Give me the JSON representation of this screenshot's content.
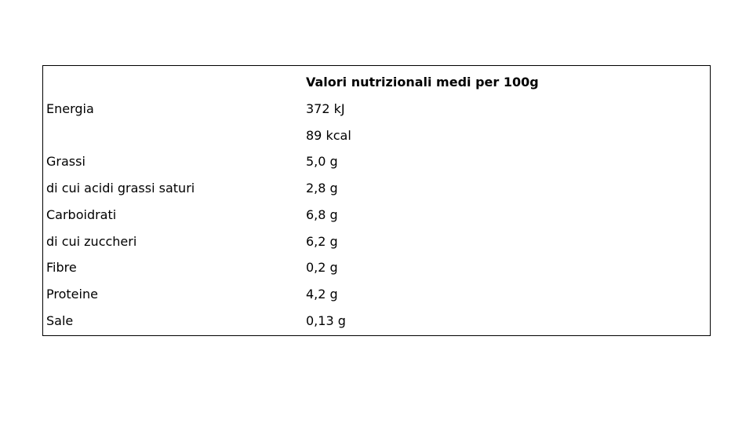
{
  "table": {
    "header": [
      "",
      "Valori nutrizionali medi per 100g"
    ],
    "rows": [
      [
        "Energia",
        "372 kJ"
      ],
      [
        "",
        "89 kcal"
      ],
      [
        "Grassi",
        "5,0 g"
      ],
      [
        "di cui acidi grassi saturi",
        "2,8 g"
      ],
      [
        "Carboidrati",
        "6,8 g"
      ],
      [
        "di cui zuccheri",
        "6,2 g"
      ],
      [
        "Fibre",
        "0,2 g"
      ],
      [
        "Proteine",
        "4,2 g"
      ],
      [
        "Sale",
        "0,13 g"
      ]
    ]
  }
}
